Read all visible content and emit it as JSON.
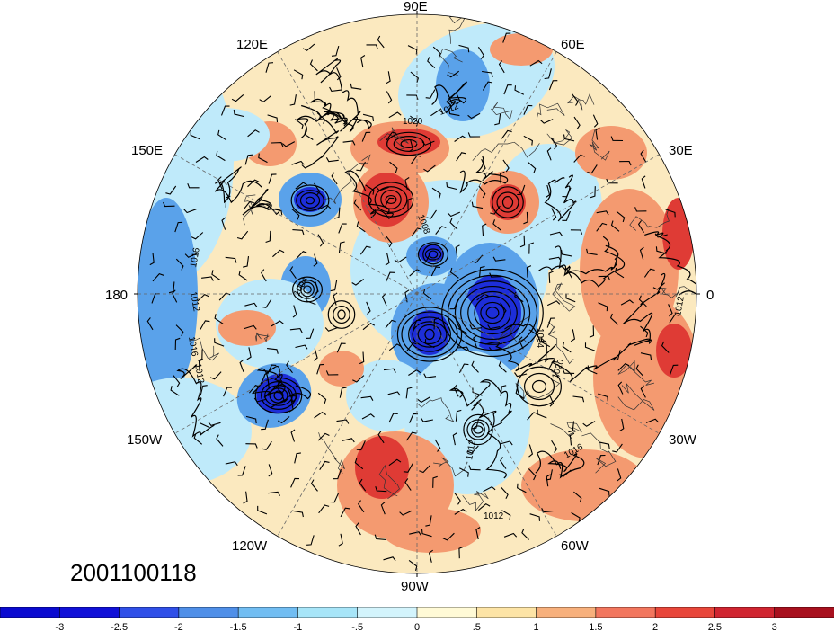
{
  "map": {
    "timestamp": "2001100118",
    "projection": "north-polar-stereographic",
    "longitude_labels": {
      "n": "90E",
      "nne": "60E",
      "ene": "30E",
      "e": "0",
      "ese": "30W",
      "sse": "60W",
      "s": "90W",
      "ssw": "120W",
      "wsw": "150W",
      "w": "180",
      "wnw": "150E",
      "nnw": "120E"
    },
    "contour_labels": [
      "1020",
      "1012",
      "1016",
      "1012",
      "1016",
      "1012",
      "1008",
      "1004",
      "1020",
      "1016",
      "1012",
      "1012",
      "1012",
      "1004"
    ],
    "colorbar": {
      "tick_labels": [
        "-3",
        "-2.5",
        "-2",
        "-1.5",
        "-1",
        "-.5",
        "0",
        ".5",
        "1",
        "1.5",
        "2",
        "2.5",
        "3"
      ],
      "colors": [
        "#1010d8",
        "#2f4fe8",
        "#4f8fe8",
        "#71bdf2",
        "#a7e5f8",
        "#d3f4fc",
        "#fffad6",
        "#fde4a6",
        "#f7b07c",
        "#f2765e",
        "#e8463a",
        "#d02430",
        "#a8101e"
      ]
    },
    "anomaly_palette": {
      "strong_negative": "#1d2ed9",
      "negative": "#5aa2ea",
      "weak_negative": "#bfeafa",
      "weak_positive": "#fbe9bf",
      "positive": "#f49a70",
      "strong_positive": "#df3b35"
    }
  }
}
